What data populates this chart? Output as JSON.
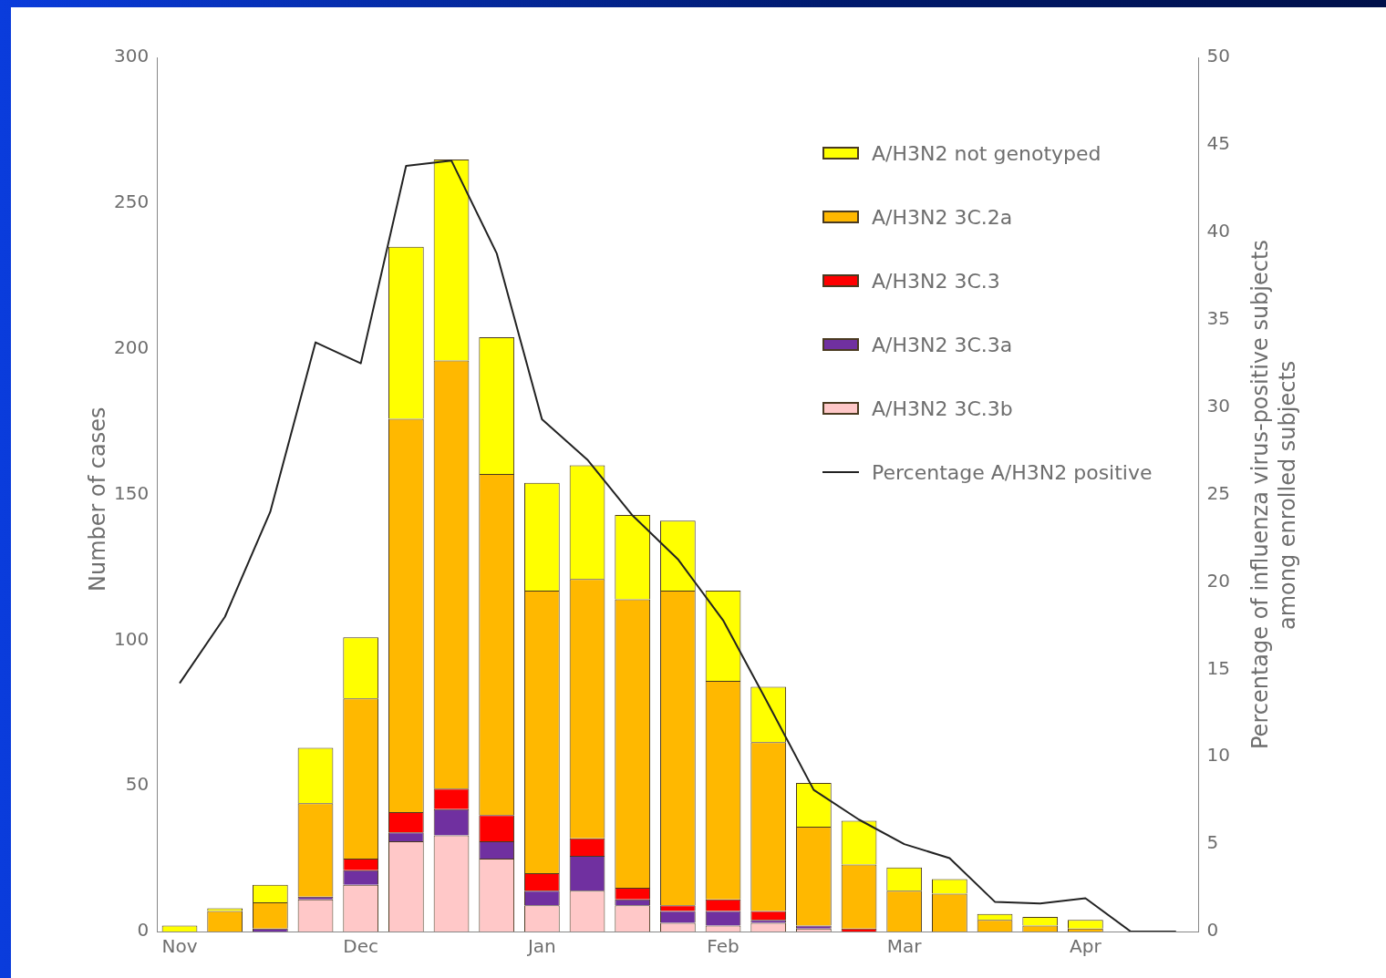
{
  "chart_data": {
    "type": "bar",
    "stacked": true,
    "ylabel": "Number of cases",
    "y2label": "Percentage of influenza virus-positive subjects among enrolled subjects",
    "categories": [
      "Nov",
      null,
      null,
      null,
      "Dec",
      null,
      null,
      null,
      "Jan",
      null,
      null,
      null,
      "Feb",
      null,
      null,
      null,
      "Mar",
      null,
      null,
      null,
      "Apr",
      null,
      null
    ],
    "series": [
      {
        "name": "A/H3N2 3C.3b",
        "color": "#ffc8c8",
        "values": [
          0,
          0,
          0,
          11,
          16,
          31,
          33,
          25,
          9,
          14,
          9,
          3,
          2,
          3,
          1,
          0,
          0,
          0,
          0,
          0,
          0,
          0,
          0
        ]
      },
      {
        "name": "A/H3N2 3C.3a",
        "color": "#7030a0",
        "values": [
          0,
          0,
          1,
          1,
          5,
          3,
          9,
          6,
          5,
          12,
          2,
          4,
          5,
          1,
          1,
          0,
          0,
          0,
          0,
          0,
          0,
          0,
          0
        ]
      },
      {
        "name": "A/H3N2 3C.3",
        "color": "#ff0000",
        "values": [
          0,
          0,
          0,
          0,
          4,
          7,
          7,
          9,
          6,
          6,
          4,
          2,
          4,
          3,
          0,
          1,
          0,
          0,
          0,
          0,
          0,
          0,
          0
        ]
      },
      {
        "name": "A/H3N2 3C.2a",
        "color": "#ffb800",
        "values": [
          0,
          7,
          9,
          32,
          55,
          135,
          147,
          117,
          97,
          89,
          99,
          108,
          75,
          58,
          34,
          22,
          14,
          13,
          4,
          2,
          1,
          0,
          0
        ]
      },
      {
        "name": "A/H3N2 not genotyped",
        "color": "#ffff00",
        "values": [
          2,
          1,
          6,
          19,
          21,
          59,
          69,
          47,
          37,
          39,
          29,
          24,
          31,
          19,
          15,
          15,
          8,
          5,
          2,
          3,
          3,
          0,
          0
        ]
      },
      {
        "name": "Percentage A/H3N2 positive",
        "type": "line",
        "axis": "y2",
        "color": "#222222",
        "values": [
          14.2,
          18,
          24,
          33.7,
          32.5,
          43.8,
          44.1,
          38.8,
          29.3,
          27,
          23.8,
          21.3,
          17.8,
          13,
          8.1,
          6.4,
          5,
          4.2,
          1.7,
          1.6,
          1.9,
          0,
          0
        ]
      }
    ],
    "ylim": [
      0,
      300
    ],
    "yticks": [
      0,
      50,
      100,
      150,
      200,
      250,
      300
    ],
    "y2lim": [
      0,
      50
    ],
    "y2ticks": [
      0,
      5,
      10,
      15,
      20,
      25,
      30,
      35,
      40,
      45,
      50
    ],
    "grid": false,
    "legend": "top right",
    "marker": "none",
    "line_style": "solid"
  }
}
